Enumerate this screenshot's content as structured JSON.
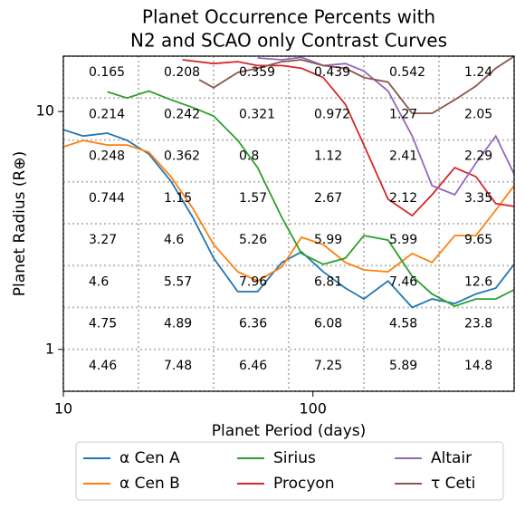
{
  "chart_data": {
    "type": "line",
    "title": [
      "Planet Occurrence Percents with",
      "N2 and SCAO only Contrast Curves"
    ],
    "xlabel": "Planet Period (days)",
    "ylabel": "Planet Radius (R⊕)",
    "xscale": "log",
    "yscale": "log",
    "xlim": [
      10,
      640
    ],
    "ylim": [
      0.667,
      17.09
    ],
    "xticks": [
      10,
      100
    ],
    "yticks": [
      1,
      10
    ],
    "x_grid": [
      10,
      20,
      40,
      80,
      160,
      320,
      640
    ],
    "y_grid": [
      0.667,
      1,
      1.5,
      2.25,
      3.375,
      5.0625,
      7.59,
      11.39,
      17.09
    ],
    "legend": "lower center",
    "annotations": [
      [
        "0.165",
        "0.208",
        "0.359",
        "0.439",
        "0.542",
        "1.24"
      ],
      [
        "0.214",
        "0.242",
        "0.321",
        "0.972",
        "1.27",
        "2.05"
      ],
      [
        "0.248",
        "0.362",
        "0.8",
        "1.12",
        "2.41",
        "2.29"
      ],
      [
        "0.744",
        "1.15",
        "1.57",
        "2.67",
        "2.12",
        "3.35"
      ],
      [
        "3.27",
        "4.6",
        "5.26",
        "5.99",
        "5.99",
        "9.65"
      ],
      [
        "4.6",
        "5.57",
        "7.96",
        "6.81",
        "7.46",
        "12.6"
      ],
      [
        "4.75",
        "4.89",
        "6.36",
        "6.08",
        "4.58",
        "23.8"
      ],
      [
        "4.46",
        "7.48",
        "6.46",
        "7.25",
        "5.89",
        "14.8"
      ]
    ],
    "series": [
      {
        "name": "α Cen A",
        "color": "#1f77b4",
        "x": [
          10,
          12,
          15,
          18,
          22,
          27,
          33,
          40,
          50,
          60,
          75,
          90,
          110,
          135,
          160,
          200,
          250,
          300,
          370,
          450,
          540,
          640
        ],
        "values": [
          8.39,
          7.89,
          8.11,
          7.56,
          6.63,
          5.09,
          3.59,
          2.42,
          1.75,
          1.75,
          2.32,
          2.57,
          2.12,
          1.81,
          1.63,
          1.94,
          1.5,
          1.63,
          1.56,
          1.71,
          1.81,
          2.28
        ]
      },
      {
        "name": "α Cen B",
        "color": "#ff7f0e",
        "x": [
          10,
          12,
          15,
          18,
          22,
          27,
          33,
          40,
          50,
          60,
          75,
          90,
          110,
          135,
          160,
          200,
          250,
          300,
          370,
          450,
          540,
          640
        ],
        "values": [
          7.1,
          7.56,
          7.23,
          7.23,
          6.75,
          5.32,
          3.92,
          2.76,
          2.12,
          1.94,
          2.22,
          2.96,
          2.76,
          2.32,
          2.16,
          2.12,
          2.53,
          2.32,
          3.01,
          3.01,
          3.85,
          4.88
        ]
      },
      {
        "name": "Sirius",
        "color": "#2ca02c",
        "x": [
          15,
          18,
          22,
          27,
          33,
          40,
          50,
          60,
          75,
          90,
          110,
          135,
          160,
          200,
          250,
          300,
          370,
          450,
          540,
          640
        ],
        "values": [
          12.1,
          11.4,
          12.2,
          11.2,
          10.4,
          9.57,
          7.56,
          5.81,
          3.59,
          2.53,
          2.28,
          2.42,
          3.01,
          2.88,
          2.03,
          1.71,
          1.52,
          1.63,
          1.63,
          1.78
        ]
      },
      {
        "name": "Procyon",
        "color": "#d62728",
        "x": [
          30,
          40,
          50,
          60,
          75,
          90,
          110,
          135,
          160,
          200,
          250,
          300,
          370,
          450,
          540,
          640
        ],
        "values": [
          16.5,
          15.9,
          16.2,
          15.6,
          15.6,
          15.2,
          13.9,
          10.7,
          7.23,
          4.28,
          3.65,
          4.47,
          5.81,
          5.32,
          4.1,
          3.99
        ]
      },
      {
        "name": "Altair",
        "color": "#9467bd",
        "x": [
          60,
          75,
          90,
          110,
          135,
          160,
          200,
          250,
          300,
          370,
          450,
          540,
          640
        ],
        "values": [
          16.8,
          16.5,
          16.9,
          15.6,
          15.9,
          14.8,
          12.2,
          7.89,
          4.88,
          4.47,
          6.07,
          7.89,
          5.46
        ]
      },
      {
        "name": "τ Ceti",
        "color": "#8c564b",
        "x": [
          35,
          40,
          50,
          60,
          75,
          90,
          110,
          135,
          160,
          200,
          250,
          300,
          370,
          450,
          540,
          640
        ],
        "values": [
          13.6,
          12.6,
          14.6,
          15.2,
          16.2,
          16.5,
          15.6,
          15.2,
          13.9,
          13.3,
          9.83,
          9.83,
          11.2,
          12.8,
          15.2,
          17.06
        ]
      }
    ]
  }
}
